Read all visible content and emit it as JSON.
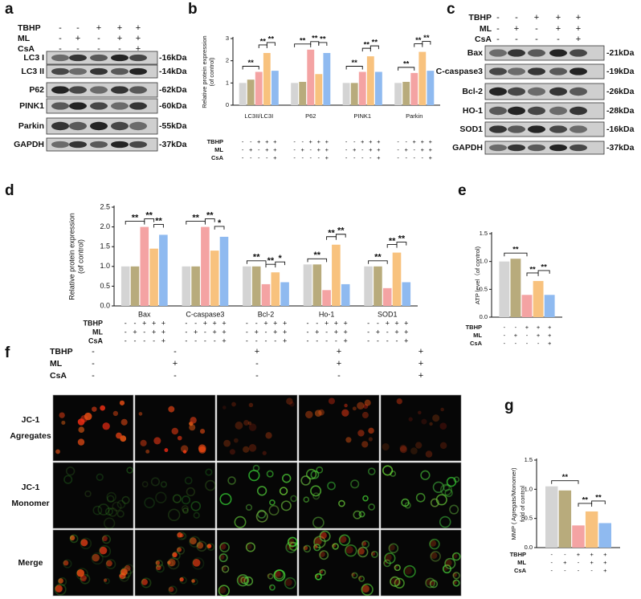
{
  "chart_data": [
    {
      "type": "bar",
      "label": "b",
      "ylabel": [
        "Relative protein expression",
        "(of control)"
      ],
      "categories": [
        "LC3II/LC3I",
        "P62",
        "PINK1",
        "Parkin"
      ],
      "series": [
        {
          "color": "#d4d4d4",
          "values": [
            1.0,
            1.0,
            1.0,
            1.0
          ]
        },
        {
          "color": "#b8ab7c",
          "values": [
            1.15,
            1.05,
            1.0,
            1.05
          ]
        },
        {
          "color": "#f4a3a3",
          "values": [
            1.5,
            2.5,
            1.5,
            1.45
          ]
        },
        {
          "color": "#f8c27e",
          "values": [
            2.35,
            1.4,
            2.2,
            2.4
          ]
        },
        {
          "color": "#8fbaf0",
          "values": [
            1.55,
            2.35,
            1.5,
            1.55
          ]
        }
      ],
      "ylim": [
        0,
        3
      ],
      "yticks": [
        0,
        1,
        2,
        3
      ],
      "treatment": [
        {
          "name": "TBHP",
          "signs": [
            "-",
            "-",
            "+",
            "+",
            "+"
          ]
        },
        {
          "name": "ML",
          "signs": [
            "-",
            "+",
            "-",
            "+",
            "+"
          ]
        },
        {
          "name": "CsA",
          "signs": [
            "-",
            "-",
            "-",
            "-",
            "+"
          ]
        }
      ],
      "significance": [
        {
          "category": 0,
          "pair": [
            0,
            2
          ],
          "label": "**"
        },
        {
          "category": 0,
          "pair": [
            2,
            3
          ],
          "label": "**"
        },
        {
          "category": 0,
          "pair": [
            3,
            4
          ],
          "label": "**"
        },
        {
          "category": 1,
          "pair": [
            0,
            2
          ],
          "label": "**"
        },
        {
          "category": 1,
          "pair": [
            2,
            3
          ],
          "label": "**"
        },
        {
          "category": 1,
          "pair": [
            3,
            4
          ],
          "label": "**"
        },
        {
          "category": 2,
          "pair": [
            0,
            2
          ],
          "label": "**"
        },
        {
          "category": 2,
          "pair": [
            2,
            3
          ],
          "label": "**"
        },
        {
          "category": 2,
          "pair": [
            3,
            4
          ],
          "label": "**"
        },
        {
          "category": 3,
          "pair": [
            0,
            2
          ],
          "label": "**"
        },
        {
          "category": 3,
          "pair": [
            2,
            3
          ],
          "label": "**"
        },
        {
          "category": 3,
          "pair": [
            3,
            4
          ],
          "label": "**"
        }
      ]
    },
    {
      "type": "bar",
      "label": "d",
      "ylabel": [
        "Relative protein expression",
        "(of control)"
      ],
      "categories": [
        "Bax",
        "C-caspase3",
        "Bcl-2",
        "Ho-1",
        "SOD1"
      ],
      "series": [
        {
          "color": "#d4d4d4",
          "values": [
            1.0,
            1.0,
            1.0,
            1.05,
            1.0
          ]
        },
        {
          "color": "#b8ab7c",
          "values": [
            1.0,
            1.0,
            1.0,
            1.05,
            1.0
          ]
        },
        {
          "color": "#f4a3a3",
          "values": [
            2.0,
            2.0,
            0.55,
            0.4,
            0.45
          ]
        },
        {
          "color": "#f8c27e",
          "values": [
            1.45,
            1.4,
            0.85,
            1.55,
            1.35
          ]
        },
        {
          "color": "#8fbaf0",
          "values": [
            1.8,
            1.75,
            0.6,
            0.55,
            0.6
          ]
        }
      ],
      "ylim": [
        0,
        2.5
      ],
      "yticks": [
        {
          "value": 0,
          "label": "0.0"
        },
        0.5,
        {
          "value": 1,
          "label": "1.0"
        },
        1.5,
        {
          "value": 2,
          "label": "2.0"
        },
        2.5
      ],
      "treatment": [
        {
          "name": "TBHP",
          "signs": [
            "-",
            "-",
            "+",
            "+",
            "+"
          ]
        },
        {
          "name": "ML",
          "signs": [
            "-",
            "+",
            "-",
            "+",
            "+"
          ]
        },
        {
          "name": "CsA",
          "signs": [
            "-",
            "-",
            "-",
            "-",
            "+"
          ]
        }
      ],
      "significance": [
        {
          "category": 0,
          "pair": [
            0,
            2
          ],
          "label": "**"
        },
        {
          "category": 0,
          "pair": [
            2,
            3
          ],
          "label": "**"
        },
        {
          "category": 0,
          "pair": [
            3,
            4
          ],
          "label": "**"
        },
        {
          "category": 1,
          "pair": [
            0,
            2
          ],
          "label": "**"
        },
        {
          "category": 1,
          "pair": [
            2,
            3
          ],
          "label": "**"
        },
        {
          "category": 1,
          "pair": [
            3,
            4
          ],
          "label": "*"
        },
        {
          "category": 2,
          "pair": [
            0,
            2
          ],
          "label": "**"
        },
        {
          "category": 2,
          "pair": [
            2,
            3
          ],
          "label": "**"
        },
        {
          "category": 2,
          "pair": [
            3,
            4
          ],
          "label": "*"
        },
        {
          "category": 3,
          "pair": [
            0,
            2
          ],
          "label": "**"
        },
        {
          "category": 3,
          "pair": [
            2,
            3
          ],
          "label": "**"
        },
        {
          "category": 3,
          "pair": [
            3,
            4
          ],
          "label": "**"
        },
        {
          "category": 4,
          "pair": [
            0,
            2
          ],
          "label": "**"
        },
        {
          "category": 4,
          "pair": [
            2,
            3
          ],
          "label": "**"
        },
        {
          "category": 4,
          "pair": [
            3,
            4
          ],
          "label": "**"
        }
      ]
    },
    {
      "type": "bar",
      "label": "e",
      "ylabel": [
        "ATP level（of control)"
      ],
      "values": [
        1.0,
        1.05,
        0.4,
        0.65,
        0.4
      ],
      "colors": [
        "#d4d4d4",
        "#b8ab7c",
        "#f4a3a3",
        "#f8c27e",
        "#8fbaf0"
      ],
      "ylim": [
        0,
        1.5
      ],
      "yticks": [
        {
          "value": 0,
          "label": "0.0"
        },
        0.5,
        {
          "value": 1,
          "label": "1.0"
        },
        1.5
      ],
      "treatment": [
        {
          "name": "TBHP",
          "signs": [
            "-",
            "-",
            "+",
            "+",
            "+"
          ]
        },
        {
          "name": "ML",
          "signs": [
            "-",
            "+",
            "-",
            "+",
            "+"
          ]
        },
        {
          "name": "CsA",
          "signs": [
            "-",
            "-",
            "-",
            "-",
            "+"
          ]
        }
      ],
      "significance": [
        {
          "pair": [
            0,
            2
          ],
          "label": "**"
        },
        {
          "pair": [
            2,
            3
          ],
          "label": "**"
        },
        {
          "pair": [
            3,
            4
          ],
          "label": "**"
        }
      ]
    },
    {
      "type": "bar",
      "label": "g",
      "ylabel": [
        "MMP ( Agregats/Monomer)",
        "fold of control"
      ],
      "values": [
        1.05,
        0.98,
        0.38,
        0.62,
        0.42
      ],
      "colors": [
        "#d4d4d4",
        "#b8ab7c",
        "#f4a3a3",
        "#f8c27e",
        "#8fbaf0"
      ],
      "ylim": [
        0,
        1.5
      ],
      "yticks": [
        {
          "value": 0,
          "label": "0.0"
        },
        0.5,
        {
          "value": 1,
          "label": "1.0"
        },
        1.5
      ],
      "treatment": [
        {
          "name": "TBHP",
          "signs": [
            "-",
            "-",
            "+",
            "+",
            "+"
          ]
        },
        {
          "name": "ML",
          "signs": [
            "-",
            "+",
            "-",
            "+",
            "+"
          ]
        },
        {
          "name": "CsA",
          "signs": [
            "-",
            "-",
            "-",
            "-",
            "+"
          ]
        }
      ],
      "significance": [
        {
          "pair": [
            0,
            2
          ],
          "label": "**"
        },
        {
          "pair": [
            2,
            3
          ],
          "label": "**"
        },
        {
          "pair": [
            3,
            4
          ],
          "label": "**"
        }
      ]
    }
  ],
  "panels": {
    "a": {
      "label": "a",
      "conditions": [
        {
          "name": "TBHP",
          "signs": [
            "-",
            "-",
            "+",
            "+",
            "+"
          ]
        },
        {
          "name": "ML",
          "signs": [
            "-",
            "+",
            "-",
            "+",
            "+"
          ]
        },
        {
          "name": "CsA",
          "signs": [
            "-",
            "-",
            "-",
            "-",
            "+"
          ]
        }
      ],
      "rows": [
        {
          "name": "LC3 I",
          "size": "-16kDa"
        },
        {
          "name": "LC3 II",
          "size": "-14kDa"
        },
        {
          "name": "P62",
          "size": "-62kDa"
        },
        {
          "name": "PINK1",
          "size": "-60kDa"
        },
        {
          "name": "Parkin",
          "size": "-55kDa"
        },
        {
          "name": "GAPDH",
          "size": "-37kDa"
        }
      ]
    },
    "c": {
      "label": "c",
      "conditions": [
        {
          "name": "TBHP",
          "signs": [
            "-",
            "-",
            "+",
            "+",
            "+"
          ]
        },
        {
          "name": "ML",
          "signs": [
            "-",
            "+",
            "-",
            "+",
            "+"
          ]
        },
        {
          "name": "CsA",
          "signs": [
            "-",
            "-",
            "-",
            "-",
            "+"
          ]
        }
      ],
      "rows": [
        {
          "name": "Bax",
          "size": "-21kDa"
        },
        {
          "name": "C-caspase3",
          "size": "-19kDa"
        },
        {
          "name": "Bcl-2",
          "size": "-26kDa"
        },
        {
          "name": "HO-1",
          "size": "-28kDa"
        },
        {
          "name": "SOD1",
          "size": "-16kDa"
        },
        {
          "name": "GAPDH",
          "size": "-37kDa"
        }
      ]
    },
    "f": {
      "label": "f",
      "conditions": [
        {
          "name": "TBHP",
          "signs": [
            "-",
            "-",
            "+",
            "+",
            "+"
          ]
        },
        {
          "name": "ML",
          "signs": [
            "-",
            "+",
            "-",
            "+",
            "+"
          ]
        },
        {
          "name": "CsA",
          "signs": [
            "-",
            "-",
            "-",
            "-",
            "+"
          ]
        }
      ],
      "rows": [
        [
          "JC-1",
          "Agregates"
        ],
        [
          "JC-1",
          "Monomer"
        ],
        [
          "Merge"
        ]
      ]
    }
  }
}
